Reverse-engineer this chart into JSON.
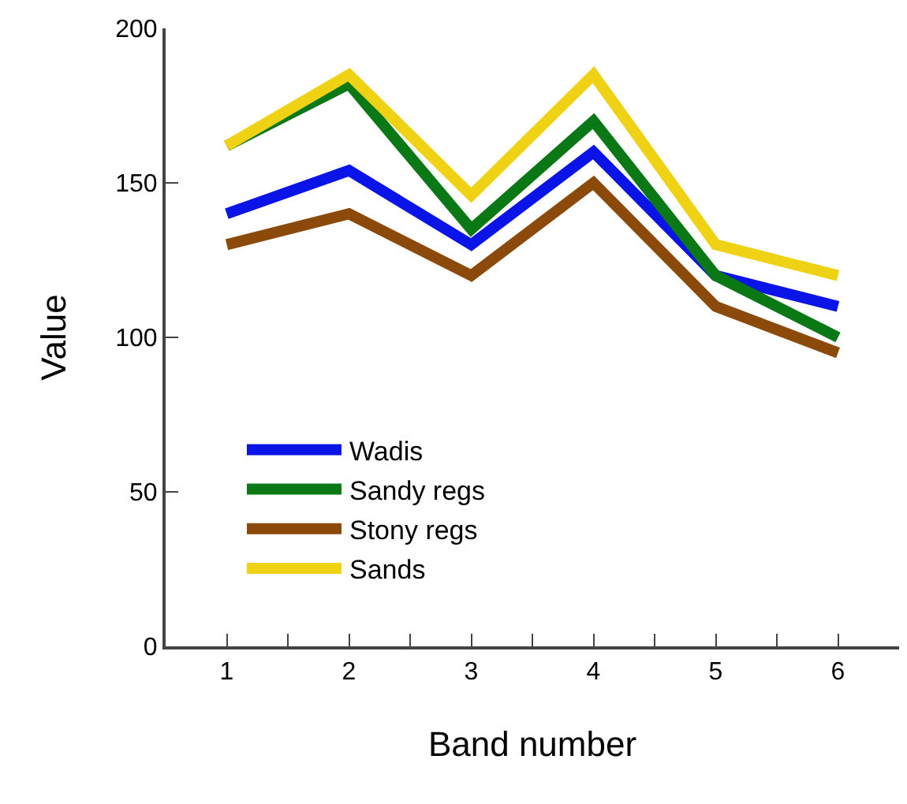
{
  "chart_data": {
    "type": "line",
    "xlabel": "Band number",
    "ylabel": "Value",
    "x": [
      1,
      2,
      3,
      4,
      5,
      6
    ],
    "series": [
      {
        "name": "Wadis",
        "color": "#0a14e6",
        "values": [
          140,
          154,
          130,
          160,
          120,
          110
        ]
      },
      {
        "name": "Sandy regs",
        "color": "#0a7814",
        "values": [
          162,
          182,
          135,
          170,
          120,
          100
        ]
      },
      {
        "name": "Stony regs",
        "color": "#8c4a0a",
        "values": [
          130,
          140,
          120,
          150,
          110,
          95
        ]
      },
      {
        "name": "Sands",
        "color": "#f0d214",
        "values": [
          162,
          185,
          146,
          185,
          130,
          120
        ]
      }
    ],
    "xlim": [
      0.5,
      6.5
    ],
    "xticks": [
      1,
      {
        "value": 1.5,
        "label": null
      },
      2,
      {
        "value": 2.5,
        "label": null
      },
      3,
      {
        "value": 3.5,
        "label": null
      },
      4,
      {
        "value": 4.5,
        "label": null
      },
      5,
      {
        "value": 5.5,
        "label": null
      },
      6
    ],
    "ylim": [
      0,
      200
    ],
    "yticks": [
      0,
      50,
      100,
      150,
      200
    ],
    "legend": "bottom left",
    "marker": "none",
    "line_style": "solid"
  }
}
